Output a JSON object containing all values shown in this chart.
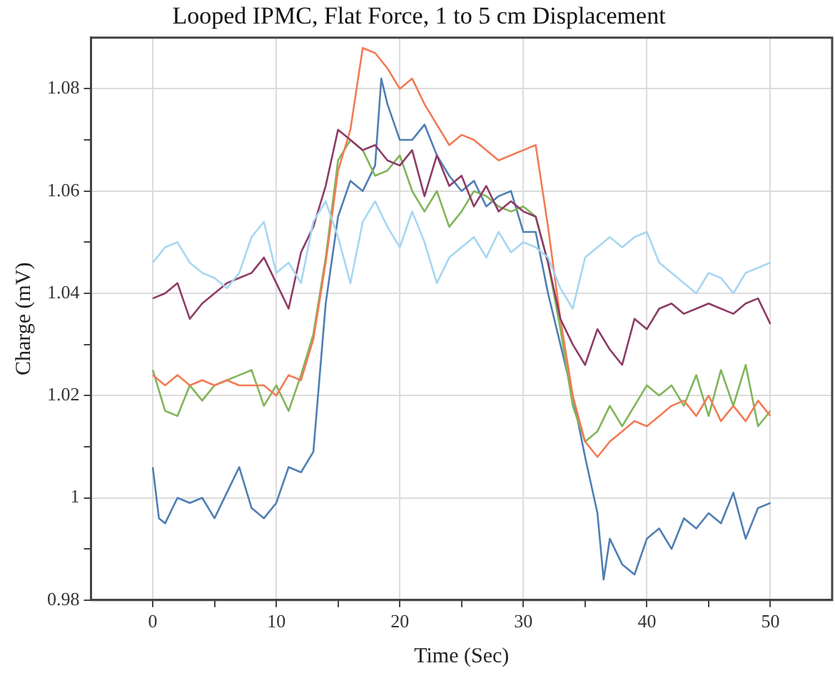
{
  "chart_data": {
    "type": "line",
    "title": "Looped IPMC, Flat Force, 1 to 5 cm Displacement",
    "xlabel": "Time (Sec)",
    "ylabel": "Charge (mV)",
    "x": [
      0,
      1,
      2,
      3,
      4,
      5,
      6,
      7,
      8,
      9,
      10,
      11,
      12,
      13,
      14,
      15,
      16,
      17,
      18,
      19,
      20,
      21,
      22,
      23,
      24,
      25,
      26,
      27,
      28,
      29,
      30,
      31,
      32,
      33,
      34,
      35,
      36,
      37,
      38,
      39,
      40,
      41,
      42,
      43,
      44,
      45,
      46,
      47,
      48,
      49,
      50
    ],
    "xlim": [
      -5,
      55
    ],
    "xticks": [
      0,
      {
        "value": 5,
        "label": null
      },
      10,
      {
        "value": 15,
        "label": null
      },
      20,
      {
        "value": 25,
        "label": null
      },
      30,
      {
        "value": 35,
        "label": null
      },
      40,
      {
        "value": 45,
        "label": null
      },
      50
    ],
    "ylim": [
      0.98,
      1.09
    ],
    "yticks": [
      0.98,
      {
        "value": 0.99,
        "label": null
      },
      1,
      {
        "value": 1.01,
        "label": null
      },
      1.02,
      {
        "value": 1.03,
        "label": null
      },
      1.04,
      {
        "value": 1.05,
        "label": null
      },
      1.06,
      {
        "value": 1.07,
        "label": null
      },
      1.08
    ],
    "grid": true,
    "legend": false,
    "marker": "none",
    "line_style": "solid",
    "series": [
      {
        "color": "#a6d6f2",
        "values": [
          1.046,
          1.049,
          1.05,
          1.046,
          1.044,
          1.043,
          1.041,
          1.044,
          1.051,
          1.054,
          1.044,
          1.046,
          1.042,
          1.054,
          1.058,
          1.051,
          1.042,
          1.054,
          1.058,
          1.053,
          1.049,
          1.056,
          1.05,
          1.042,
          1.047,
          1.049,
          1.051,
          1.047,
          1.052,
          1.048,
          1.05,
          1.049,
          1.047,
          1.041,
          1.037,
          1.047,
          1.049,
          1.051,
          1.049,
          1.051,
          1.052,
          1.046,
          1.044,
          1.042,
          1.04,
          1.044,
          1.043,
          1.04,
          1.044,
          1.045,
          1.046
        ]
      },
      {
        "color": "#8e3b66",
        "values": [
          1.039,
          1.04,
          1.042,
          1.035,
          1.038,
          1.04,
          1.042,
          1.043,
          1.044,
          1.047,
          1.042,
          1.037,
          1.048,
          1.053,
          1.061,
          1.072,
          1.07,
          1.068,
          1.069,
          1.066,
          1.065,
          1.068,
          1.059,
          1.067,
          1.061,
          1.063,
          1.057,
          1.061,
          1.056,
          1.058,
          1.056,
          1.055,
          1.046,
          1.035,
          1.03,
          1.026,
          1.033,
          1.029,
          1.026,
          1.035,
          1.033,
          1.037,
          1.038,
          1.036,
          1.037,
          1.038,
          1.037,
          1.036,
          1.038,
          1.039,
          1.034
        ]
      },
      {
        "color": "#f27b55",
        "values": [
          1.024,
          1.022,
          1.024,
          1.022,
          1.023,
          1.022,
          1.023,
          1.022,
          1.022,
          1.022,
          1.02,
          1.024,
          1.023,
          1.031,
          1.046,
          1.064,
          1.072,
          1.088,
          1.087,
          1.084,
          1.08,
          1.082,
          1.077,
          1.073,
          1.069,
          1.071,
          1.07,
          1.068,
          1.066,
          1.067,
          1.068,
          1.069,
          1.053,
          1.035,
          1.02,
          1.011,
          1.008,
          1.011,
          1.013,
          1.015,
          1.014,
          1.016,
          1.018,
          1.019,
          1.016,
          1.02,
          1.015,
          1.018,
          1.015,
          1.019,
          1.016
        ]
      },
      {
        "color": "#80b55a",
        "values": [
          1.025,
          1.017,
          1.016,
          1.022,
          1.019,
          1.022,
          1.023,
          1.024,
          1.025,
          1.018,
          1.022,
          1.017,
          1.024,
          1.032,
          1.047,
          1.066,
          1.07,
          1.068,
          1.063,
          1.064,
          1.067,
          1.06,
          1.056,
          1.06,
          1.053,
          1.056,
          1.06,
          1.059,
          1.057,
          1.056,
          1.057,
          1.055,
          1.046,
          1.033,
          1.018,
          1.011,
          1.013,
          1.018,
          1.014,
          1.018,
          1.022,
          1.02,
          1.022,
          1.018,
          1.024,
          1.016,
          1.025,
          1.018,
          1.026,
          1.014,
          1.017
        ]
      },
      {
        "color": "#4f7fb3",
        "x": [
          0,
          0.5,
          1,
          2,
          3,
          4,
          5,
          6,
          7,
          8,
          9,
          10,
          11,
          12,
          13,
          14,
          15,
          16,
          17,
          18,
          18.5,
          19,
          20,
          21,
          22,
          23,
          24,
          25,
          26,
          27,
          28,
          29,
          30,
          31,
          32,
          33,
          34,
          35,
          36,
          36.5,
          37,
          38,
          39,
          40,
          41,
          42,
          43,
          44,
          45,
          46,
          47,
          48,
          49,
          50
        ],
        "values": [
          1.006,
          0.996,
          0.995,
          1.0,
          0.999,
          1.0,
          0.996,
          1.001,
          1.006,
          0.998,
          0.996,
          0.999,
          1.006,
          1.005,
          1.009,
          1.038,
          1.055,
          1.062,
          1.06,
          1.065,
          1.082,
          1.077,
          1.07,
          1.07,
          1.073,
          1.067,
          1.063,
          1.06,
          1.062,
          1.057,
          1.059,
          1.06,
          1.052,
          1.052,
          1.04,
          1.03,
          1.02,
          1.008,
          0.997,
          0.984,
          0.992,
          0.987,
          0.985,
          0.992,
          0.994,
          0.99,
          0.996,
          0.994,
          0.997,
          0.995,
          1.001,
          0.992,
          0.998,
          0.999
        ]
      }
    ]
  }
}
